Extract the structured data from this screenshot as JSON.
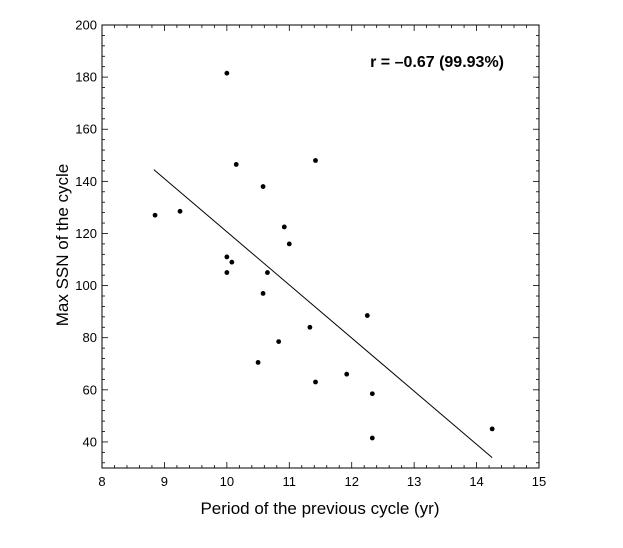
{
  "chart_data": {
    "type": "scatter",
    "title": "",
    "xlabel": "Period of the previous cycle (yr)",
    "ylabel": "Max SSN of the cycle",
    "xlim": [
      8,
      15
    ],
    "ylim": [
      30,
      200
    ],
    "xticks": [
      8,
      9,
      10,
      11,
      12,
      13,
      14,
      15
    ],
    "yticks": [
      40,
      60,
      80,
      100,
      120,
      140,
      160,
      180,
      200
    ],
    "annotation": "r = –0.67 (99.93%)",
    "points": [
      {
        "x": 8.85,
        "y": 127
      },
      {
        "x": 9.25,
        "y": 128.5
      },
      {
        "x": 10.0,
        "y": 181.5
      },
      {
        "x": 10.0,
        "y": 111
      },
      {
        "x": 10.0,
        "y": 105
      },
      {
        "x": 10.08,
        "y": 109
      },
      {
        "x": 10.15,
        "y": 146.5
      },
      {
        "x": 10.5,
        "y": 70.5
      },
      {
        "x": 10.58,
        "y": 138
      },
      {
        "x": 10.58,
        "y": 97
      },
      {
        "x": 10.65,
        "y": 105
      },
      {
        "x": 10.83,
        "y": 78.5
      },
      {
        "x": 10.92,
        "y": 122.5
      },
      {
        "x": 11.0,
        "y": 116
      },
      {
        "x": 11.33,
        "y": 84
      },
      {
        "x": 11.42,
        "y": 148
      },
      {
        "x": 11.42,
        "y": 63
      },
      {
        "x": 11.92,
        "y": 66
      },
      {
        "x": 12.25,
        "y": 88.5
      },
      {
        "x": 12.33,
        "y": 58.5
      },
      {
        "x": 12.33,
        "y": 41.5
      },
      {
        "x": 14.25,
        "y": 45
      }
    ],
    "fit_line": {
      "x": [
        8.83,
        14.25
      ],
      "y": [
        144.5,
        34
      ]
    }
  }
}
